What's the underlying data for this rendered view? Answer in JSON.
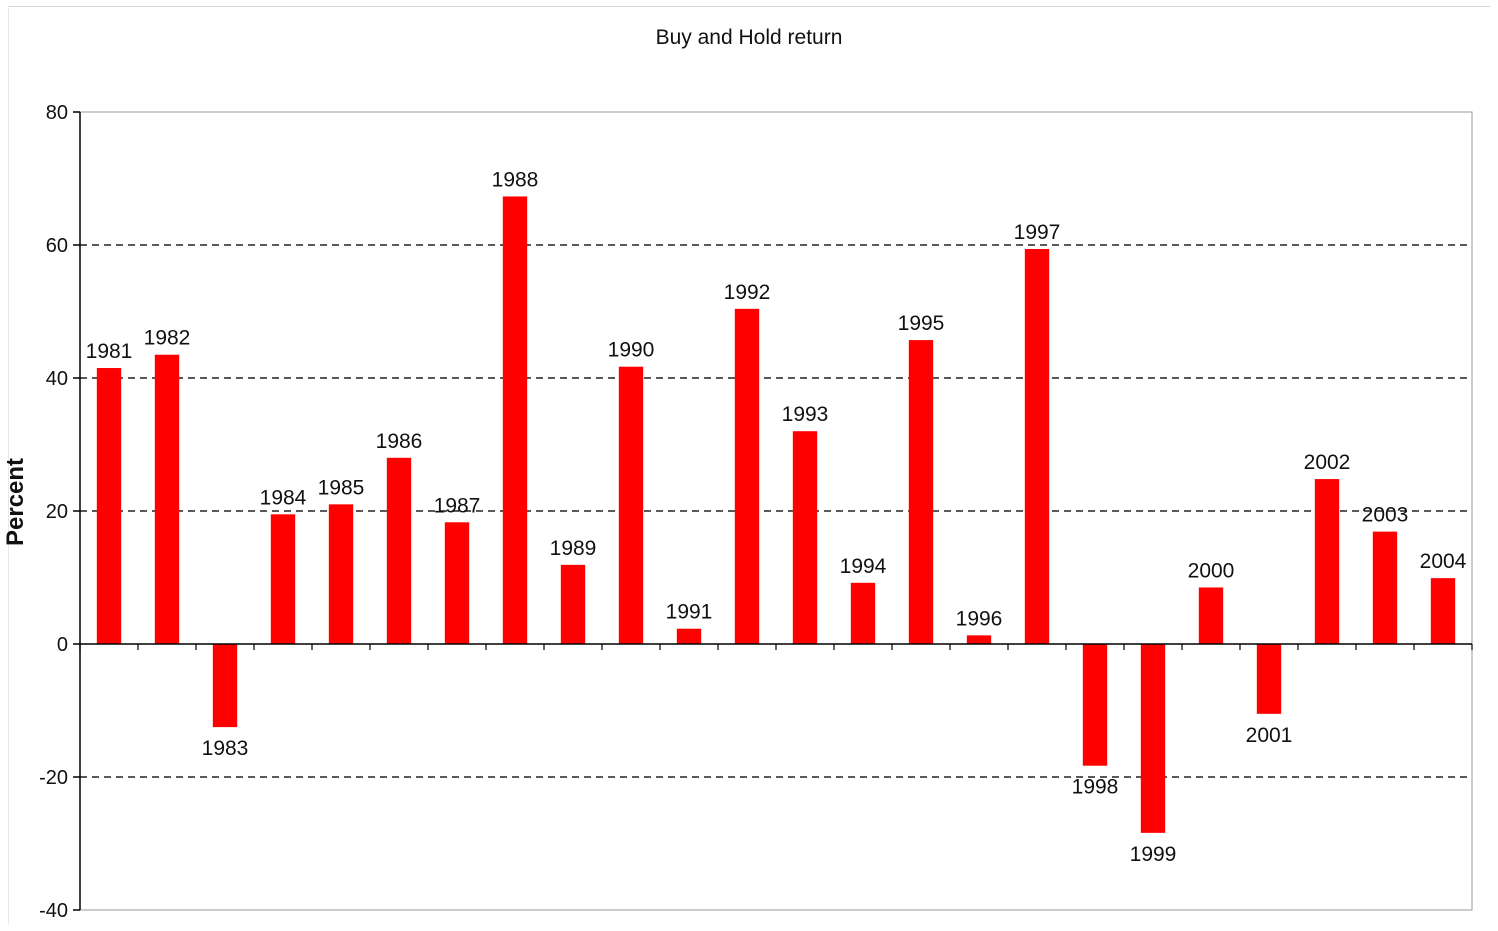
{
  "chart_data": {
    "type": "bar",
    "title": "Buy and Hold return",
    "xlabel": "",
    "ylabel": "Percent",
    "ylim": [
      -40,
      80
    ],
    "yticks": [
      "80",
      "60",
      "40",
      "20",
      "0",
      "-20",
      "-40"
    ],
    "ytick_values": [
      80,
      60,
      40,
      20,
      0,
      -20,
      -40
    ],
    "grid": "dashed horizontal",
    "bar_color": "#ff0000",
    "categories": [
      "1981",
      "1982",
      "1983",
      "1984",
      "1985",
      "1986",
      "1987",
      "1988",
      "1989",
      "1990",
      "1991",
      "1992",
      "1993",
      "1994",
      "1995",
      "1996",
      "1997",
      "1998",
      "1999",
      "2000",
      "2001",
      "2002",
      "2003",
      "2004"
    ],
    "values": [
      41.5,
      43.5,
      -12.5,
      19.5,
      21,
      28,
      18.3,
      67.3,
      11.9,
      41.7,
      2.3,
      50.4,
      32,
      9.2,
      45.7,
      1.3,
      59.4,
      -18.3,
      -28.4,
      8.5,
      -10.5,
      24.8,
      16.9,
      9.9
    ]
  }
}
